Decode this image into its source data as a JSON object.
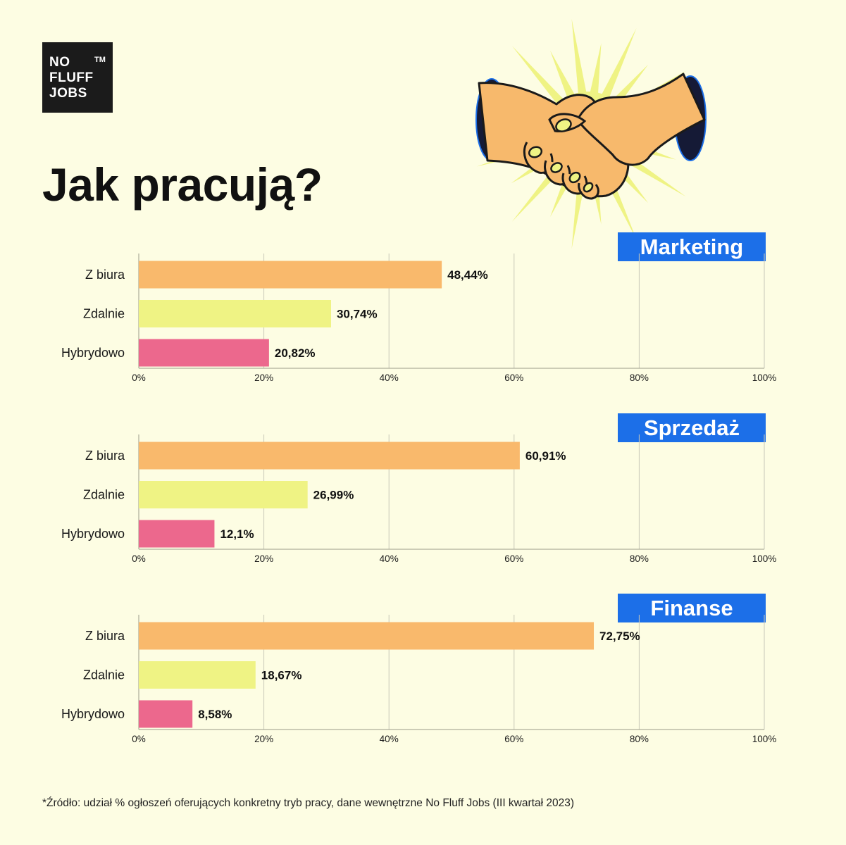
{
  "logo": {
    "lines": [
      "NO",
      "FLUFF",
      "JOBS"
    ],
    "tm": "TM"
  },
  "title": "Jak pracują?",
  "footnote": "*Źródło: udział % ogłoszeń oferujących konkretny tryb pracy, dane wewnętrzne No Fluff Jobs (III kwartał 2023)",
  "colors": {
    "background": "#fdfde3",
    "tag": "#1c6fe8",
    "z_biura": "#f9b96c",
    "zdalnie": "#eff384",
    "hybrydowo": "#ec688d"
  },
  "illustration": "handshake-icon",
  "chart_data": [
    {
      "type": "bar",
      "orientation": "horizontal",
      "title": "Marketing",
      "categories": [
        "Z biura",
        "Zdalnie",
        "Hybrydowo"
      ],
      "values": [
        48.44,
        30.74,
        20.82
      ],
      "value_labels": [
        "48,44%",
        "30,74%",
        "20,82%"
      ],
      "xlim": [
        0,
        100
      ],
      "xticks": [
        "0%",
        "20%",
        "40%",
        "60%",
        "80%",
        "100%"
      ],
      "grid": true
    },
    {
      "type": "bar",
      "orientation": "horizontal",
      "title": "Sprzedaż",
      "categories": [
        "Z biura",
        "Zdalnie",
        "Hybrydowo"
      ],
      "values": [
        60.91,
        26.99,
        12.1
      ],
      "value_labels": [
        "60,91%",
        "26,99%",
        "12,1%"
      ],
      "xlim": [
        0,
        100
      ],
      "xticks": [
        "0%",
        "20%",
        "40%",
        "60%",
        "80%",
        "100%"
      ],
      "grid": true
    },
    {
      "type": "bar",
      "orientation": "horizontal",
      "title": "Finanse",
      "categories": [
        "Z biura",
        "Zdalnie",
        "Hybrydowo"
      ],
      "values": [
        72.75,
        18.67,
        8.58
      ],
      "value_labels": [
        "72,75%",
        "18,67%",
        "8,58%"
      ],
      "xlim": [
        0,
        100
      ],
      "xticks": [
        "0%",
        "20%",
        "40%",
        "60%",
        "80%",
        "100%"
      ],
      "grid": true
    }
  ]
}
